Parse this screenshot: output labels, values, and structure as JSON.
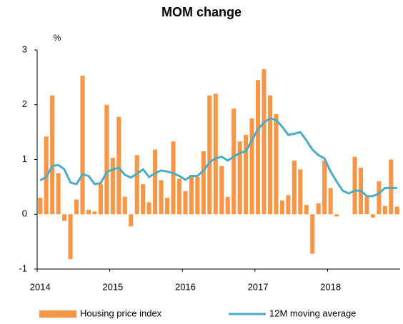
{
  "chart_data": {
    "type": "bar_line",
    "title": "MOM change",
    "y_unit_label": "%",
    "categories": [
      "2014",
      null,
      null,
      null,
      null,
      null,
      null,
      null,
      null,
      null,
      null,
      null,
      "2015",
      null,
      null,
      null,
      null,
      null,
      null,
      null,
      null,
      null,
      null,
      null,
      "2016",
      null,
      null,
      null,
      null,
      null,
      null,
      null,
      null,
      null,
      null,
      null,
      "2017",
      null,
      null,
      null,
      null,
      null,
      null,
      null,
      null,
      null,
      null,
      null,
      "2018",
      null,
      null,
      null,
      null,
      null,
      null,
      null,
      null,
      null,
      null,
      null
    ],
    "series": [
      {
        "name": "Housing price index",
        "type": "bar",
        "color": "#f79646",
        "values": [
          0.3,
          1.42,
          2.17,
          0.75,
          -0.12,
          -0.82,
          0.27,
          2.53,
          0.08,
          0.05,
          0.55,
          2.0,
          1.03,
          1.78,
          0.32,
          -0.22,
          1.08,
          0.55,
          0.22,
          1.18,
          0.62,
          0.3,
          1.33,
          0.65,
          0.42,
          0.72,
          0.68,
          1.15,
          2.17,
          2.2,
          0.88,
          0.32,
          1.93,
          1.33,
          1.45,
          1.75,
          2.45,
          2.65,
          2.17,
          1.83,
          0.25,
          0.35,
          0.98,
          0.82,
          0.17,
          -0.72,
          0.2,
          0.98,
          0.48,
          -0.04,
          0.0,
          0.0,
          1.05,
          0.85,
          0.32,
          -0.06,
          0.6,
          0.15,
          1.0,
          0.14
        ]
      },
      {
        "name": "12M moving average",
        "type": "line",
        "color": "#4bacc6",
        "values": [
          0.62,
          0.68,
          0.88,
          0.9,
          0.82,
          0.58,
          0.55,
          0.73,
          0.7,
          0.55,
          0.57,
          0.77,
          0.82,
          0.85,
          0.72,
          0.67,
          0.74,
          0.82,
          0.68,
          0.75,
          0.8,
          0.78,
          0.75,
          0.7,
          0.63,
          0.7,
          0.7,
          0.8,
          0.95,
          1.02,
          1.05,
          0.98,
          1.05,
          1.12,
          1.15,
          1.35,
          1.55,
          1.68,
          1.75,
          1.72,
          1.6,
          1.45,
          1.47,
          1.5,
          1.35,
          1.18,
          1.08,
          1.02,
          0.78,
          0.6,
          0.43,
          0.38,
          0.43,
          0.43,
          0.33,
          0.33,
          0.38,
          0.48,
          0.48,
          0.48
        ]
      }
    ],
    "ylim": [
      -1,
      3
    ],
    "yticks": [
      -1,
      0,
      1,
      2,
      3
    ],
    "grid": false,
    "legend": "bottom"
  }
}
